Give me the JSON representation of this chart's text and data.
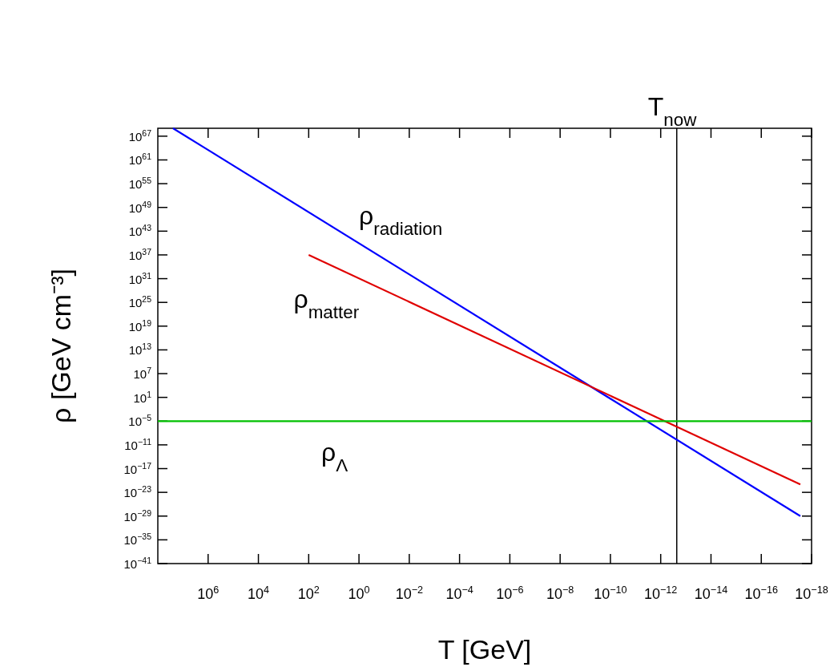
{
  "chart_data": {
    "type": "line",
    "xlabel": "T [GeV]",
    "ylabel": "ρ [GeV cm⁻³]",
    "log": "xy",
    "xlim": [
      100000000.0,
      1e-18
    ],
    "ylim": [
      1e-41,
      1e+69
    ],
    "xticks": [
      {
        "value": 1000000.0,
        "label": "10$^{6}$"
      },
      {
        "value": 10000.0,
        "label": "10$^{4}$"
      },
      {
        "value": 100.0,
        "label": "10$^{2}$"
      },
      {
        "value": 1,
        "label": "10$^{0}$"
      },
      {
        "value": 0.01,
        "label": "10$^{−2}$"
      },
      {
        "value": 0.0001,
        "label": "10$^{−4}$"
      },
      {
        "value": 1e-06,
        "label": "10$^{−6}$"
      },
      {
        "value": 1e-08,
        "label": "10$^{−8}$"
      },
      {
        "value": 1e-10,
        "label": "10$^{−10}$"
      },
      {
        "value": 1e-12,
        "label": "10$^{−12}$"
      },
      {
        "value": 1e-14,
        "label": "10$^{−14}$"
      },
      {
        "value": 1e-16,
        "label": "10$^{−16}$"
      },
      {
        "value": 1e-18,
        "label": "10$^{−18}$"
      }
    ],
    "yticks": [
      {
        "value": 1e+67,
        "label": "10$^{67}$"
      },
      {
        "value": 1e+61,
        "label": "10$^{61}$"
      },
      {
        "value": 1e+55,
        "label": "10$^{55}$"
      },
      {
        "value": 1e+49,
        "label": "10$^{49}$"
      },
      {
        "value": 1e+43,
        "label": "10$^{43}$"
      },
      {
        "value": 1e+37,
        "label": "10$^{37}$"
      },
      {
        "value": 1e+31,
        "label": "10$^{31}$"
      },
      {
        "value": 1e+25,
        "label": "10$^{25}$"
      },
      {
        "value": 1e+19,
        "label": "10$^{19}$"
      },
      {
        "value": 10000000000000.0,
        "label": "10$^{13}$"
      },
      {
        "value": 10000000.0,
        "label": "10$^{7}$"
      },
      {
        "value": 10,
        "label": "10$^{1}$"
      },
      {
        "value": 1e-05,
        "label": "10$^{−5}$"
      },
      {
        "value": 1e-11,
        "label": "10$^{−11}$"
      },
      {
        "value": 1e-17,
        "label": "10$^{−17}$"
      },
      {
        "value": 1e-23,
        "label": "10$^{−23}$"
      },
      {
        "value": 1e-29,
        "label": "10$^{−29}$"
      },
      {
        "value": 1e-35,
        "label": "10$^{−35}$"
      },
      {
        "value": 1e-41,
        "label": "10$^{−41}$"
      }
    ],
    "series": [
      {
        "name": "ρ$_{radiation}$",
        "color": "#0000ff",
        "x": [
          25000000.0,
          2.8e-18
        ],
        "values": [
          1e+69,
          1e-29
        ]
      },
      {
        "name": "ρ$_{matter}$",
        "color": "#e00000",
        "x": [
          100,
          2.8e-18
        ],
        "values": [
          1e+37,
          1e-21
        ]
      },
      {
        "name": "ρ$_{Λ}$",
        "color": "#00c000",
        "x": [
          100000000.0,
          1e-18
        ],
        "values": [
          1e-05,
          1e-05
        ]
      }
    ],
    "ref_lines": [
      {
        "axis": "x",
        "value": 2.3e-13,
        "label": "T$_{now}$",
        "color": "#000000"
      }
    ]
  }
}
